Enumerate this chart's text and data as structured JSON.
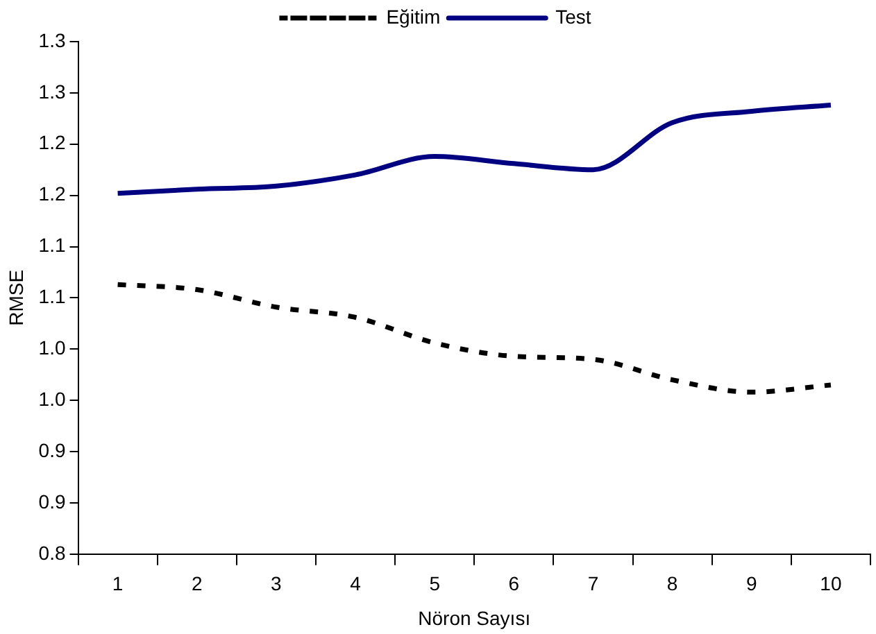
{
  "chart_data": {
    "type": "line",
    "xlabel": "Nöron Sayısı",
    "ylabel": "RMSE",
    "categories": [
      "1",
      "2",
      "3",
      "4",
      "5",
      "6",
      "7",
      "8",
      "9",
      "10"
    ],
    "series": [
      {
        "name": "Eğitim",
        "color": "#000000",
        "line_style": "dashed",
        "values": [
          1.063,
          1.058,
          1.041,
          1.031,
          1.006,
          0.993,
          0.99,
          0.97,
          0.958,
          0.965
        ]
      },
      {
        "name": "Test",
        "color": "#000080",
        "line_style": "solid",
        "values": [
          1.152,
          1.156,
          1.159,
          1.17,
          1.188,
          1.181,
          1.175,
          1.221,
          1.232,
          1.238
        ]
      }
    ],
    "ylim": [
      0.8,
      1.3
    ],
    "yticks": [
      {
        "value": 0.8,
        "label": "0.8"
      },
      {
        "value": 0.85,
        "label": "0.9"
      },
      {
        "value": 0.9,
        "label": "0.9"
      },
      {
        "value": 0.95,
        "label": "1.0"
      },
      {
        "value": 1.0,
        "label": "1.0"
      },
      {
        "value": 1.05,
        "label": "1.1"
      },
      {
        "value": 1.1,
        "label": "1.1"
      },
      {
        "value": 1.15,
        "label": "1.2"
      },
      {
        "value": 1.2,
        "label": "1.2"
      },
      {
        "value": 1.25,
        "label": "1.3"
      },
      {
        "value": 1.3,
        "label": "1.3"
      }
    ],
    "grid": false,
    "legend": "top",
    "marker": "none"
  }
}
